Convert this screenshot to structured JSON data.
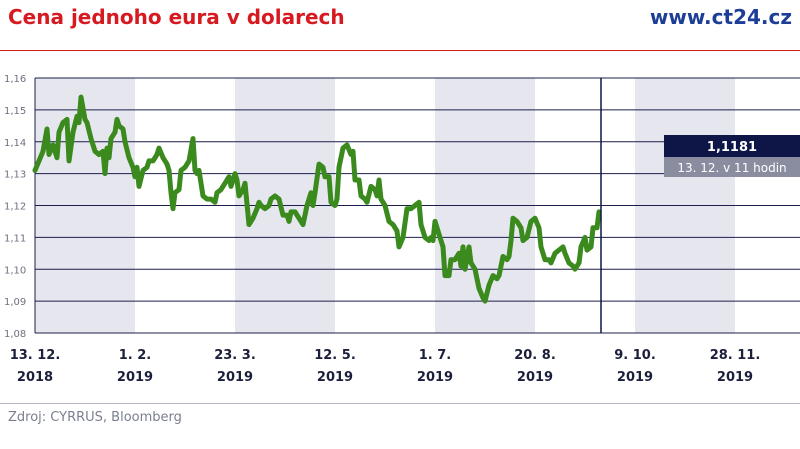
{
  "header": {
    "title": "Cena jednoho eura v dolarech",
    "site": "www.ct24.cz"
  },
  "footer": {
    "source": "Zdroj: CYRRUS, Bloomberg"
  },
  "colors": {
    "title": "#d71920",
    "site": "#1d3e97",
    "line": "#3a8a1e",
    "band": "#e6e6ee",
    "grid": "#1b1f4b",
    "annotation": "#0e1547",
    "annotation_sub": "#8a8da0"
  },
  "chart_data": {
    "type": "line",
    "title": "Cena jednoho eura v dolarech",
    "xlabel": "",
    "ylabel": "",
    "ylim": [
      1.08,
      1.16
    ],
    "yticks": [
      "1,08",
      "1,09",
      "1,10",
      "1,11",
      "1,12",
      "1,13",
      "1,14",
      "1,15",
      "1,16"
    ],
    "xticks": [
      {
        "x": 0,
        "line1": "13. 12.",
        "line2": "2018"
      },
      {
        "x": 50,
        "line1": "1. 2.",
        "line2": "2019"
      },
      {
        "x": 100,
        "line1": "23. 3.",
        "line2": "2019"
      },
      {
        "x": 150,
        "line1": "12. 5.",
        "line2": "2019"
      },
      {
        "x": 200,
        "line1": "1. 7.",
        "line2": "2019"
      },
      {
        "x": 250,
        "line1": "20. 8.",
        "line2": "2019"
      },
      {
        "x": 300,
        "line1": "9. 10.",
        "line2": "2019"
      },
      {
        "x": 350,
        "line1": "28. 11.",
        "line2": "2019"
      }
    ],
    "xlim": [
      0,
      365
    ],
    "grid": true,
    "bands": [
      [
        0,
        50
      ],
      [
        100,
        150
      ],
      [
        200,
        250
      ],
      [
        300,
        350
      ]
    ],
    "series": [
      {
        "points": [
          [
            0,
            1.131
          ],
          [
            2,
            1.134
          ],
          [
            4,
            1.137
          ],
          [
            6,
            1.144
          ],
          [
            7,
            1.136
          ],
          [
            9,
            1.139
          ],
          [
            11,
            1.135
          ],
          [
            12,
            1.143
          ],
          [
            14,
            1.146
          ],
          [
            16,
            1.147
          ],
          [
            17,
            1.134
          ],
          [
            19,
            1.143
          ],
          [
            21,
            1.148
          ],
          [
            22,
            1.146
          ],
          [
            23,
            1.154
          ],
          [
            25,
            1.147
          ],
          [
            26,
            1.146
          ],
          [
            28,
            1.141
          ],
          [
            30,
            1.137
          ],
          [
            32,
            1.136
          ],
          [
            34,
            1.137
          ],
          [
            35,
            1.13
          ],
          [
            36,
            1.138
          ],
          [
            37,
            1.135
          ],
          [
            38,
            1.141
          ],
          [
            40,
            1.143
          ],
          [
            41,
            1.147
          ],
          [
            42,
            1.145
          ],
          [
            44,
            1.144
          ],
          [
            45,
            1.14
          ],
          [
            47,
            1.135
          ],
          [
            49,
            1.132
          ],
          [
            50,
            1.129
          ],
          [
            51,
            1.132
          ],
          [
            52,
            1.126
          ],
          [
            54,
            1.131
          ],
          [
            56,
            1.132
          ],
          [
            57,
            1.134
          ],
          [
            59,
            1.134
          ],
          [
            61,
            1.136
          ],
          [
            62,
            1.138
          ],
          [
            64,
            1.135
          ],
          [
            66,
            1.133
          ],
          [
            67,
            1.131
          ],
          [
            68,
            1.124
          ],
          [
            69,
            1.119
          ],
          [
            70,
            1.124
          ],
          [
            72,
            1.125
          ],
          [
            73,
            1.131
          ],
          [
            75,
            1.132
          ],
          [
            77,
            1.134
          ],
          [
            79,
            1.141
          ],
          [
            80,
            1.131
          ],
          [
            81,
            1.13
          ],
          [
            82,
            1.131
          ],
          [
            84,
            1.123
          ],
          [
            86,
            1.122
          ],
          [
            88,
            1.122
          ],
          [
            90,
            1.121
          ],
          [
            91,
            1.124
          ],
          [
            93,
            1.125
          ],
          [
            95,
            1.127
          ],
          [
            97,
            1.129
          ],
          [
            98,
            1.126
          ],
          [
            100,
            1.13
          ],
          [
            101,
            1.128
          ],
          [
            102,
            1.123
          ],
          [
            104,
            1.125
          ],
          [
            105,
            1.127
          ],
          [
            107,
            1.114
          ],
          [
            109,
            1.116
          ],
          [
            111,
            1.119
          ],
          [
            112,
            1.121
          ],
          [
            113,
            1.12
          ],
          [
            115,
            1.119
          ],
          [
            117,
            1.12
          ],
          [
            118,
            1.122
          ],
          [
            120,
            1.123
          ],
          [
            122,
            1.122
          ],
          [
            124,
            1.117
          ],
          [
            126,
            1.117
          ],
          [
            127,
            1.115
          ],
          [
            128,
            1.118
          ],
          [
            130,
            1.118
          ],
          [
            132,
            1.116
          ],
          [
            134,
            1.114
          ],
          [
            136,
            1.12
          ],
          [
            138,
            1.124
          ],
          [
            139,
            1.12
          ],
          [
            140,
            1.124
          ],
          [
            142,
            1.133
          ],
          [
            144,
            1.132
          ],
          [
            145,
            1.129
          ],
          [
            147,
            1.129
          ],
          [
            148,
            1.121
          ],
          [
            150,
            1.12
          ],
          [
            151,
            1.122
          ],
          [
            152,
            1.132
          ],
          [
            154,
            1.138
          ],
          [
            156,
            1.139
          ],
          [
            158,
            1.136
          ],
          [
            159,
            1.137
          ],
          [
            160,
            1.128
          ],
          [
            162,
            1.128
          ],
          [
            163,
            1.123
          ],
          [
            165,
            1.122
          ],
          [
            166,
            1.121
          ],
          [
            168,
            1.126
          ],
          [
            170,
            1.125
          ],
          [
            171,
            1.123
          ],
          [
            172,
            1.128
          ],
          [
            173,
            1.122
          ],
          [
            175,
            1.12
          ],
          [
            177,
            1.115
          ],
          [
            179,
            1.114
          ],
          [
            181,
            1.112
          ],
          [
            182,
            1.107
          ],
          [
            184,
            1.11
          ],
          [
            186,
            1.119
          ],
          [
            188,
            1.119
          ],
          [
            190,
            1.12
          ],
          [
            192,
            1.121
          ],
          [
            193,
            1.114
          ],
          [
            195,
            1.11
          ],
          [
            197,
            1.109
          ],
          [
            198,
            1.11
          ],
          [
            199,
            1.109
          ],
          [
            200,
            1.115
          ],
          [
            202,
            1.111
          ],
          [
            204,
            1.107
          ],
          [
            205,
            1.098
          ],
          [
            207,
            1.098
          ],
          [
            208,
            1.103
          ],
          [
            210,
            1.103
          ],
          [
            212,
            1.105
          ],
          [
            213,
            1.101
          ],
          [
            214,
            1.107
          ],
          [
            215,
            1.1
          ],
          [
            217,
            1.107
          ],
          [
            218,
            1.102
          ],
          [
            220,
            1.1
          ],
          [
            222,
            1.094
          ],
          [
            224,
            1.091
          ],
          [
            225,
            1.09
          ],
          [
            227,
            1.095
          ],
          [
            229,
            1.098
          ],
          [
            231,
            1.097
          ],
          [
            232,
            1.098
          ],
          [
            234,
            1.104
          ],
          [
            236,
            1.103
          ],
          [
            237,
            1.104
          ],
          [
            238,
            1.109
          ],
          [
            239,
            1.116
          ],
          [
            241,
            1.115
          ],
          [
            243,
            1.113
          ],
          [
            244,
            1.109
          ],
          [
            246,
            1.11
          ],
          [
            248,
            1.115
          ],
          [
            250,
            1.116
          ],
          [
            252,
            1.113
          ],
          [
            253,
            1.107
          ],
          [
            255,
            1.103
          ],
          [
            257,
            1.103
          ],
          [
            258,
            1.102
          ],
          [
            260,
            1.105
          ],
          [
            262,
            1.106
          ],
          [
            264,
            1.107
          ],
          [
            265,
            1.105
          ],
          [
            267,
            1.102
          ],
          [
            269,
            1.101
          ],
          [
            270,
            1.1
          ],
          [
            272,
            1.102
          ],
          [
            273,
            1.107
          ],
          [
            275,
            1.11
          ],
          [
            276,
            1.106
          ],
          [
            278,
            1.107
          ],
          [
            279,
            1.113
          ],
          [
            281,
            1.113
          ],
          [
            282,
            1.118
          ]
        ]
      }
    ],
    "annotation": {
      "value": "1,1181",
      "label": "13. 12. v 11 hodin"
    }
  }
}
